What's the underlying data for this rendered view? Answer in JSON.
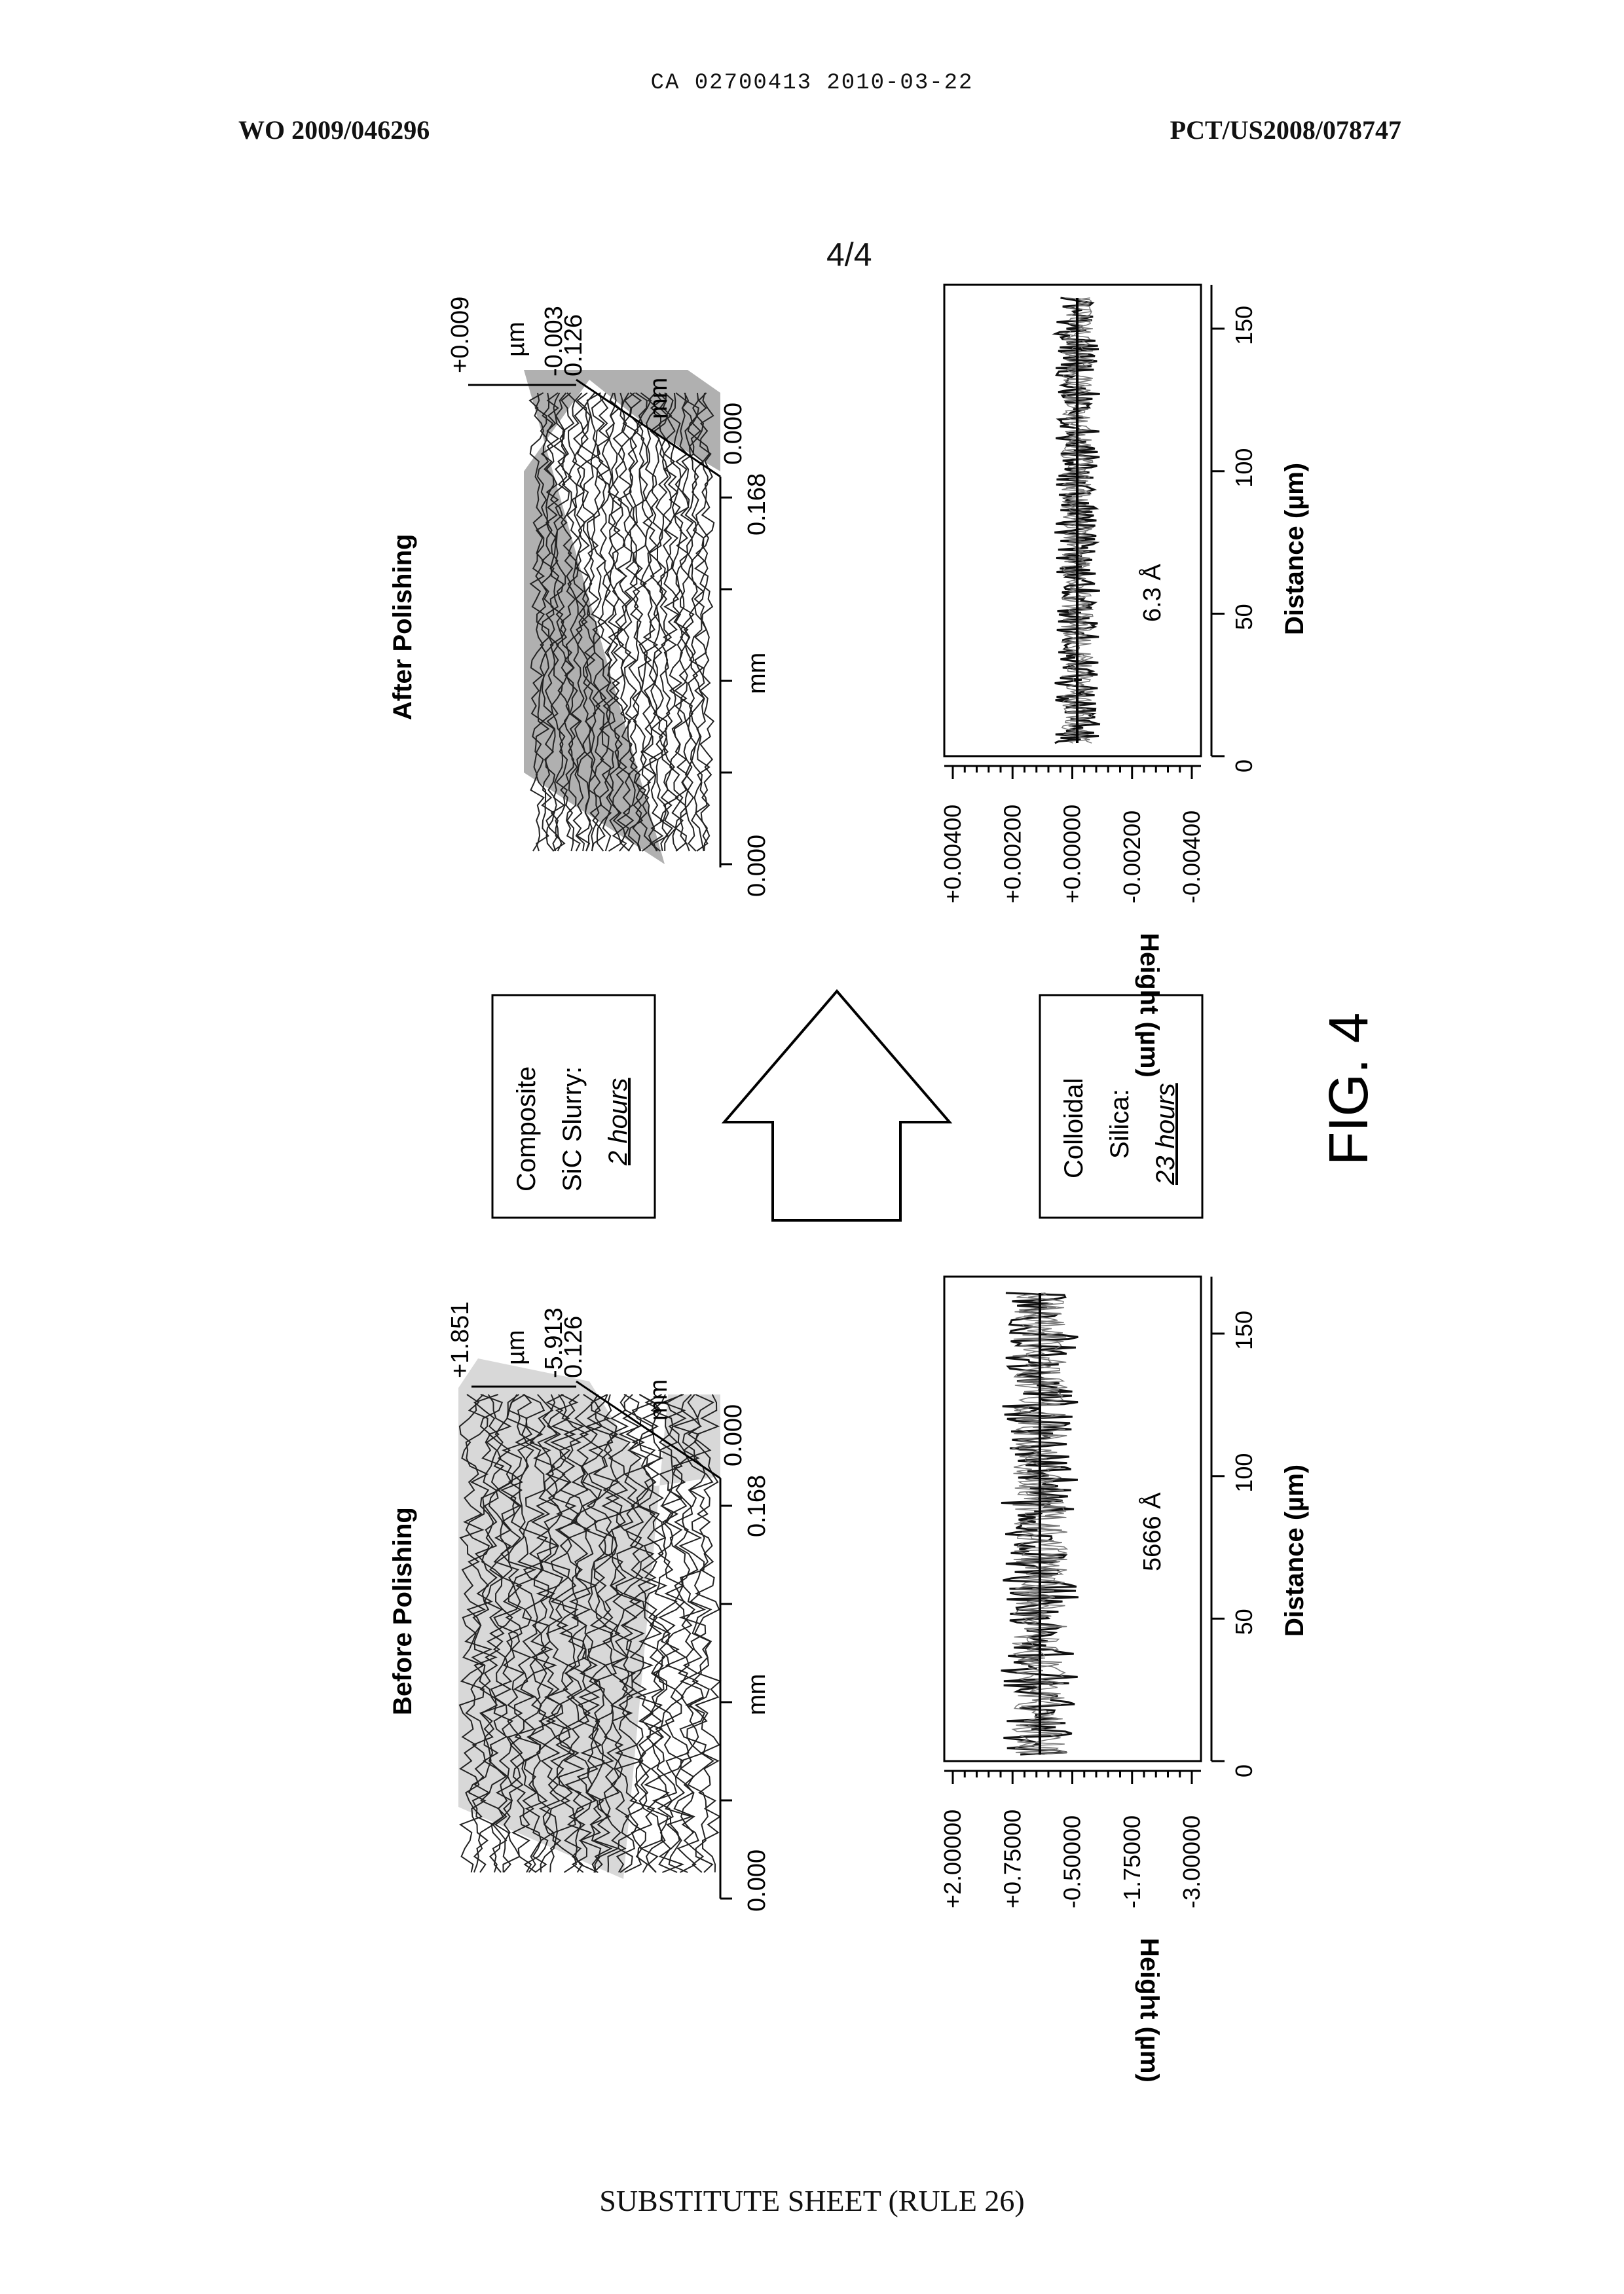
{
  "header": {
    "doc_ref": "CA 02700413 2010-03-22",
    "pub_number": "WO 2009/046296",
    "app_number": "PCT/US2008/078747"
  },
  "page_number": "4/4",
  "figure": {
    "label": "FIG. 4",
    "before": {
      "title": "Before Polishing",
      "z_max": "+1.851",
      "z_unit": "µm",
      "z_min": "-5.913",
      "y_max": "0.126",
      "y_unit": "mm",
      "x_axis_start": "0.000",
      "x_axis_end": "0.168",
      "x_unit": "mm",
      "y_axis_start": "0.000",
      "profile_label": "5666 Å",
      "profile_ylabel": "Height (µm)",
      "profile_xlabel": "Distance (µm)",
      "profile_yticks": [
        "+2.00000",
        "+0.75000",
        "-0.50000",
        "-1.75000",
        "-3.00000"
      ],
      "profile_xticks": [
        "0",
        "50",
        "100",
        "150"
      ]
    },
    "after": {
      "title": "After Polishing",
      "z_max": "+0.009",
      "z_unit": "µm",
      "z_min": "-0.003",
      "y_max": "0.126",
      "y_unit": "mm",
      "x_axis_start": "0.000",
      "x_axis_end": "0.168",
      "x_unit": "mm",
      "y_axis_start": "0.000",
      "profile_label": "6.3 Å",
      "profile_ylabel": "Height (µm)",
      "profile_xlabel": "Distance (µm)",
      "profile_yticks": [
        "+0.00400",
        "+0.00200",
        "+0.00000",
        "-0.00200",
        "-0.00400"
      ],
      "profile_xticks": [
        "0",
        "50",
        "100",
        "150"
      ]
    },
    "step1": {
      "line1": "Composite",
      "line2": "SiC Slurry:",
      "line3": "2 hours"
    },
    "step2": {
      "line1": "Colloidal",
      "line2": "Silica:",
      "line3": "23 hours"
    }
  },
  "footer": "SUBSTITUTE SHEET (RULE 26)"
}
